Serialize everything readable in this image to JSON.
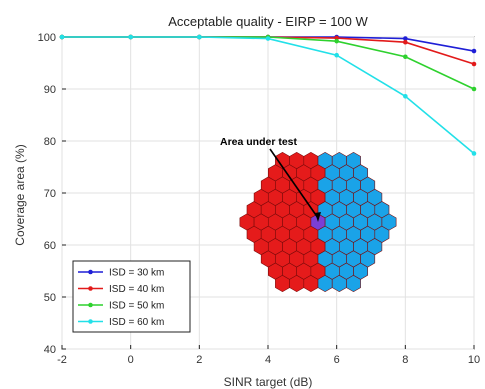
{
  "chart_data": {
    "type": "line",
    "title": "Acceptable quality - EIRP = 100 W",
    "xlabel": "SINR target (dB)",
    "ylabel": "Coverage area (%)",
    "xlim": [
      -2,
      10
    ],
    "ylim": [
      40,
      100
    ],
    "xticks": [
      -2,
      0,
      2,
      4,
      6,
      8,
      10
    ],
    "yticks": [
      40,
      50,
      60,
      70,
      80,
      90,
      100
    ],
    "grid": true,
    "legend_position": "bottom-left",
    "x": [
      -2,
      0,
      2,
      4,
      6,
      8,
      10
    ],
    "series": [
      {
        "name": "ISD = 30 km",
        "color": "#1f1fd6",
        "values": [
          100,
          100,
          100,
          100,
          100,
          99.7,
          97.3
        ]
      },
      {
        "name": "ISD = 40 km",
        "color": "#e21a1a",
        "values": [
          100,
          100,
          100,
          100,
          99.8,
          99.0,
          94.8
        ]
      },
      {
        "name": "ISD = 50 km",
        "color": "#2ed12e",
        "values": [
          100,
          100,
          100,
          100,
          99.2,
          96.2,
          90.0
        ]
      },
      {
        "name": "ISD = 60 km",
        "color": "#22e0e8",
        "values": [
          100,
          100,
          100,
          99.7,
          96.5,
          88.6,
          77.6
        ]
      }
    ],
    "annotation": "Area under test",
    "inset": {
      "description_icon": "hexagonal-cell-cluster",
      "red_color": "#e51b1b",
      "blue_color": "#1aa3e8",
      "test_cell_color": "#7b3fd6"
    }
  }
}
